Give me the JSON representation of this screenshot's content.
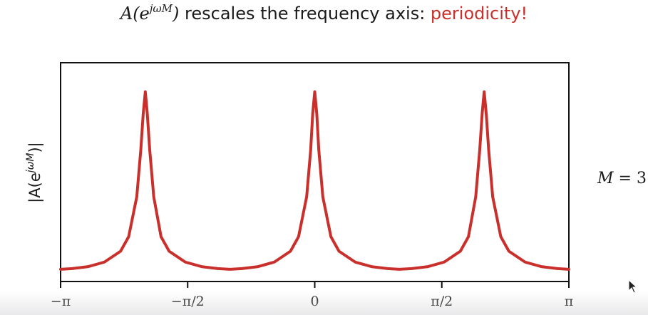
{
  "title": {
    "func": "A",
    "open": "(e",
    "exponent": "jωM",
    "close": ")",
    "text": " rescales the frequency axis: ",
    "highlight": "periodicity!"
  },
  "side_label": {
    "var": "M",
    "rest": " = 3"
  },
  "colors": {
    "curve": "#c9302c",
    "highlight": "#c9302c",
    "frame": "#111111"
  },
  "chart_data": {
    "type": "line",
    "title": "",
    "xlabel": "",
    "ylabel": "|A(e^{jωM})|",
    "xlim": [
      -3.14159,
      3.14159
    ],
    "ylim": [
      0,
      1.05
    ],
    "x_ticks": [
      -3.14159,
      -1.5708,
      0,
      1.5708,
      3.14159
    ],
    "x_tick_labels": [
      "−π",
      "−π/2",
      "0",
      "π/2",
      "π"
    ],
    "y_ticks": [],
    "grid": false,
    "legend": "none",
    "M": 3,
    "peak_locations": [
      -2.0944,
      0,
      2.0944
    ],
    "series": [
      {
        "x": [
          -3.1416,
          -3.0,
          -2.8,
          -2.6,
          -2.4,
          -2.3,
          -2.2,
          -2.15,
          -2.12,
          -2.0944,
          -2.07,
          -2.04,
          -1.99,
          -1.9,
          -1.8,
          -1.6,
          -1.4,
          -1.2,
          -1.047,
          -0.9,
          -0.7,
          -0.5,
          -0.3,
          -0.2,
          -0.1,
          -0.05,
          -0.025,
          0,
          0.025,
          0.05,
          0.1,
          0.2,
          0.3,
          0.5,
          0.7,
          0.9,
          1.047,
          1.2,
          1.4,
          1.6,
          1.8,
          1.9,
          1.99,
          2.04,
          2.07,
          2.0944,
          2.12,
          2.15,
          2.2,
          2.3,
          2.4,
          2.6,
          2.8,
          3.0,
          3.1416
        ],
        "values": [
          0.02,
          0.024,
          0.035,
          0.06,
          0.12,
          0.2,
          0.42,
          0.68,
          0.88,
          1.0,
          0.88,
          0.68,
          0.42,
          0.2,
          0.12,
          0.06,
          0.035,
          0.024,
          0.02,
          0.024,
          0.035,
          0.06,
          0.12,
          0.2,
          0.42,
          0.68,
          0.88,
          1.0,
          0.88,
          0.68,
          0.42,
          0.2,
          0.12,
          0.06,
          0.035,
          0.024,
          0.02,
          0.024,
          0.035,
          0.06,
          0.12,
          0.2,
          0.42,
          0.68,
          0.88,
          1.0,
          0.88,
          0.68,
          0.42,
          0.2,
          0.12,
          0.06,
          0.035,
          0.024,
          0.02
        ]
      }
    ]
  }
}
